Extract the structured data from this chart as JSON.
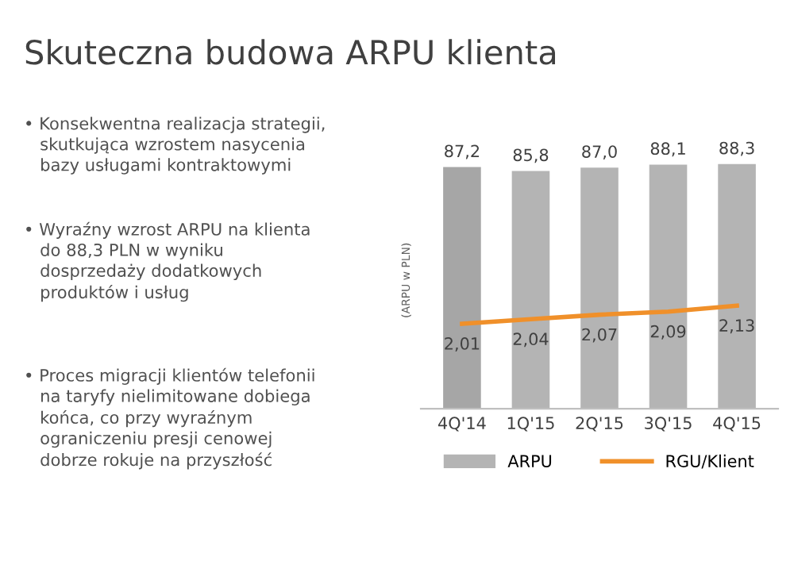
{
  "chart_data": {
    "type": "bar",
    "title": "Skuteczna budowa ARPU klienta",
    "ylabel": "(ARPU w PLN)",
    "categories": [
      "4Q'14",
      "1Q'15",
      "2Q'15",
      "3Q'15",
      "4Q'15"
    ],
    "series": [
      {
        "name": "ARPU",
        "color": "#b4b4b4",
        "colors": [
          "#a6a6a6",
          "#b4b4b4",
          "#b4b4b4",
          "#b4b4b4",
          "#b4b4b4"
        ],
        "values": [
          87.2,
          85.8,
          87.0,
          88.1,
          88.3
        ],
        "value_labels": [
          "87,2",
          "85,8",
          "87,0",
          "88,1",
          "88,3"
        ]
      },
      {
        "name": "RGU/Klient",
        "type": "line",
        "axis": "y2",
        "color": "#f0902a",
        "values": [
          2.01,
          2.04,
          2.07,
          2.09,
          2.13
        ],
        "value_labels": [
          "2,01",
          "2,04",
          "2,07",
          "2,09",
          "2,13"
        ]
      }
    ],
    "tick_labels": "x",
    "legend": "bottom",
    "marker": "none",
    "line_style": "solid",
    "annotations": [
      "• Konsekwentna realizacja strategii,\n   skutkująca wzrostem nasycenia\n   bazy usługami kontraktowymi",
      "• Wyraźny wzrost ARPU na klienta\n   do 88,3 PLN w wyniku\n   dosprzedaży dodatkowych\n   produktów i usług",
      "• Proces migracji klientów telefonii\n   na taryfy nielimitowane dobiega\n   końca, co przy wyraźnym\n   ograniczeniu presji cenowej\n   dobrze rokuje na przyszłość"
    ]
  }
}
